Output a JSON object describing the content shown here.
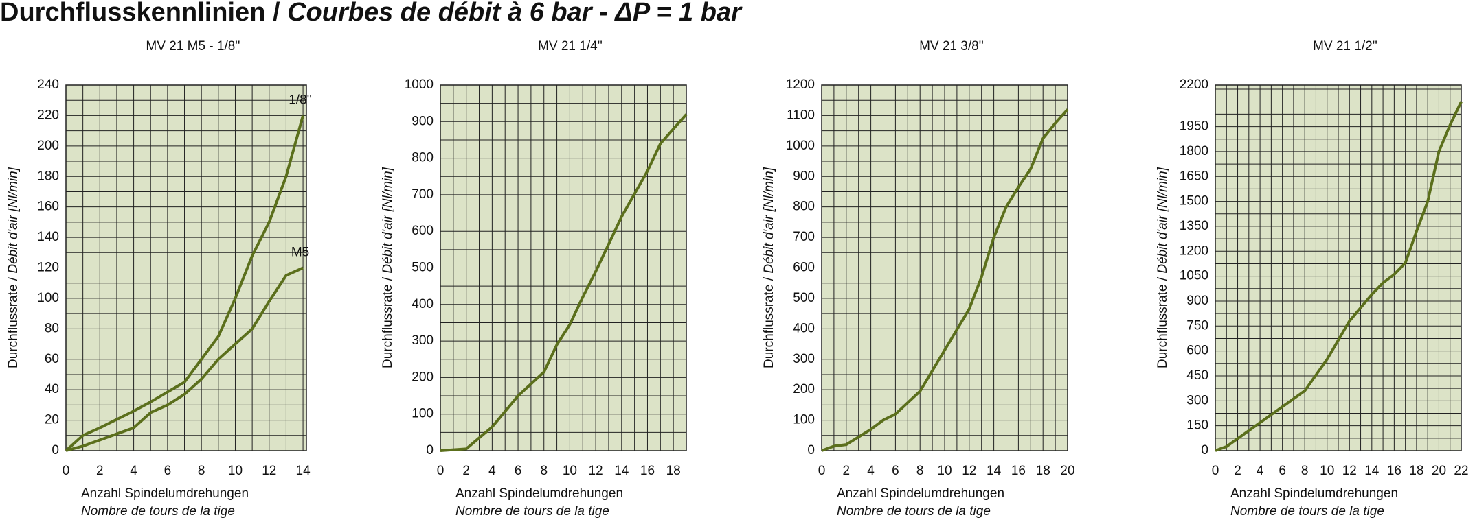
{
  "title": {
    "main": "Durchflusskennlinien /",
    "italic": "Courbes de débit à 6 bar - ΔP = 1 bar"
  },
  "chart_data": [
    {
      "type": "line",
      "title": "MV 21 M5 - 1/8''",
      "y_label": "Durchflussrate /",
      "y_label_italic": "Débit d'air [Nl/min]",
      "x_label": "Anzahl Spindelumdrehungen",
      "x_label_italic": "Nombre de tours de la tige",
      "xlim": [
        0,
        14.2
      ],
      "xticks": [
        0,
        2,
        4,
        6,
        8,
        10,
        12,
        14
      ],
      "ylim": [
        0,
        240
      ],
      "yticks": [
        0,
        20,
        40,
        60,
        80,
        100,
        120,
        140,
        160,
        180,
        200,
        220,
        240
      ],
      "grid": true,
      "minor_grid": true,
      "series_labels": true,
      "series": [
        {
          "name": "1/8''",
          "color": "#5b6f1c",
          "x": [
            0,
            1,
            2,
            4,
            5,
            7,
            8,
            9,
            10,
            11,
            12,
            13,
            14
          ],
          "values": [
            0,
            10,
            15,
            26,
            32,
            45,
            60,
            75,
            100,
            128,
            150,
            180,
            220
          ]
        },
        {
          "name": "M5",
          "color": "#5b6f1c",
          "x": [
            0,
            1,
            2,
            4,
            5,
            6,
            7,
            8,
            9,
            11,
            12,
            13,
            14
          ],
          "values": [
            0,
            3,
            7,
            15,
            25,
            30,
            37,
            47,
            60,
            80,
            98,
            115,
            120
          ]
        }
      ]
    },
    {
      "type": "line",
      "title": "MV 21 1/4''",
      "y_label": "Durchflussrate /",
      "y_label_italic": "Débit d'air [Nl/min]",
      "x_label": "Anzahl Spindelumdrehungen",
      "x_label_italic": "Nombre de tours de la tige",
      "xlim": [
        0,
        19
      ],
      "xticks": [
        0,
        2,
        4,
        6,
        8,
        10,
        12,
        14,
        16,
        18
      ],
      "ylim": [
        0,
        1000
      ],
      "yticks": [
        0,
        100,
        200,
        300,
        400,
        500,
        600,
        700,
        800,
        900,
        1000
      ],
      "grid": true,
      "minor_grid": true,
      "series_labels": false,
      "series": [
        {
          "color": "#5b6f1c",
          "x": [
            0,
            2,
            4,
            6,
            8,
            9,
            10,
            11,
            12,
            13,
            14,
            16,
            17,
            18,
            19
          ],
          "values": [
            0,
            5,
            65,
            150,
            215,
            290,
            345,
            420,
            490,
            565,
            640,
            765,
            840,
            880,
            920
          ]
        }
      ]
    },
    {
      "type": "line",
      "title": "MV 21 3/8''",
      "y_label": "Durchflussrate /",
      "y_label_italic": "Débit d'air [Nl/min]",
      "x_label": "Anzahl Spindelumdrehungen",
      "x_label_italic": "Nombre de tours de la tige",
      "xlim": [
        0,
        20
      ],
      "xticks": [
        0,
        2,
        4,
        6,
        8,
        10,
        12,
        14,
        16,
        18,
        20
      ],
      "ylim": [
        0,
        1200
      ],
      "yticks": [
        0,
        100,
        200,
        300,
        400,
        500,
        600,
        700,
        800,
        900,
        1000,
        1100,
        1200
      ],
      "grid": true,
      "minor_grid": true,
      "series_labels": false,
      "series": [
        {
          "color": "#5b6f1c",
          "x": [
            0,
            1,
            2,
            4,
            5,
            6,
            8,
            10,
            12,
            13,
            14,
            15,
            16,
            17,
            18,
            19,
            20
          ],
          "values": [
            0,
            15,
            20,
            70,
            100,
            120,
            195,
            330,
            465,
            570,
            700,
            800,
            865,
            925,
            1025,
            1075,
            1120
          ]
        }
      ]
    },
    {
      "type": "line",
      "title": "MV 21 1/2''",
      "y_label": "Durchflussrate /",
      "y_label_italic": "Débit d'air [Nl/min]",
      "x_label": "Anzahl Spindelumdrehungen",
      "x_label_italic": "Nombre de tours de la tige",
      "xlim": [
        0,
        22
      ],
      "xticks": [
        0,
        2,
        4,
        6,
        8,
        10,
        12,
        14,
        16,
        18,
        20,
        22
      ],
      "ylim": [
        0,
        2200
      ],
      "yticks": [
        0,
        150,
        300,
        450,
        600,
        750,
        900,
        1050,
        1200,
        1350,
        1500,
        1650,
        1800,
        1950,
        2200
      ],
      "grid": true,
      "minor_grid": true,
      "series_labels": false,
      "series": [
        {
          "color": "#5b6f1c",
          "x": [
            0,
            1,
            8,
            10,
            12,
            13,
            14,
            15,
            16,
            17,
            18,
            19,
            20,
            21,
            22
          ],
          "values": [
            0,
            25,
            360,
            550,
            780,
            860,
            940,
            1010,
            1060,
            1130,
            1320,
            1500,
            1800,
            1960,
            2100
          ]
        }
      ]
    }
  ]
}
